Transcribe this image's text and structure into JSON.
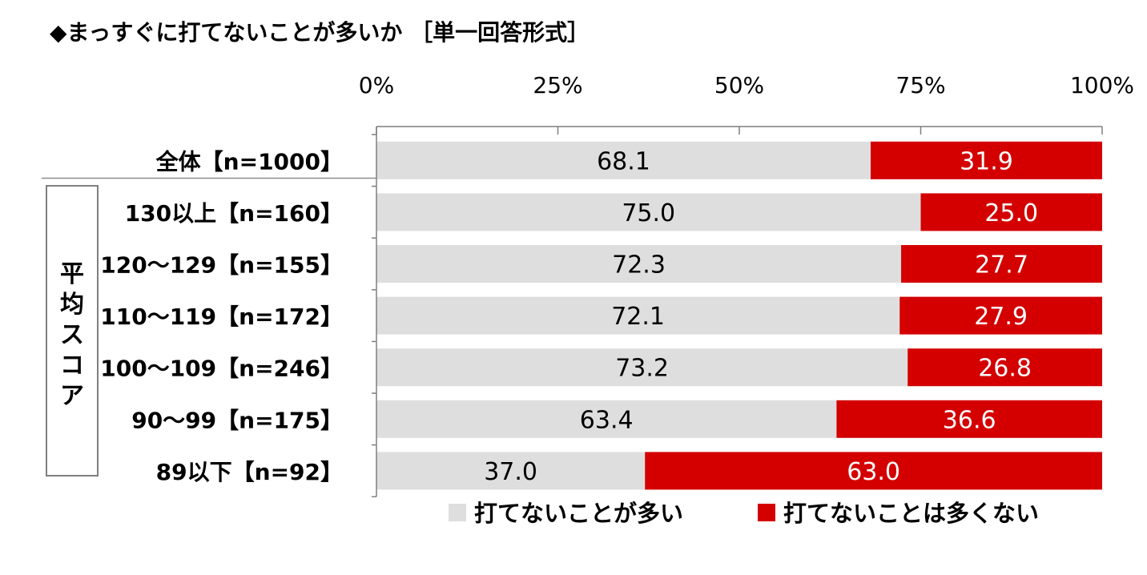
{
  "chart_data": {
    "type": "bar",
    "orientation": "horizontal",
    "stacked": true,
    "percent_stacked": true,
    "title": "◆まっすぐに打てないことが多いか ［単一回答形式］",
    "group_label": "平均スコア",
    "xlim": [
      0,
      100
    ],
    "x_ticks": [
      "0%",
      "25%",
      "50%",
      "75%",
      "100%"
    ],
    "grid": false,
    "legend_position": "bottom",
    "categories": [
      "全体【n=1000】",
      "130以上【n=160】",
      "120～129【n=155】",
      "110～119【n=172】",
      "100～109【n=246】",
      "90～99【n=175】",
      "89以下【n=92】"
    ],
    "series": [
      {
        "name": "打てないことが多い",
        "color": "#dedede",
        "label_color": "#000000",
        "values": [
          68.1,
          75.0,
          72.3,
          72.1,
          73.2,
          63.4,
          37.0
        ],
        "labels": [
          "68.1",
          "75.0",
          "72.3",
          "72.1",
          "73.2",
          "63.4",
          "37.0"
        ]
      },
      {
        "name": "打てないことは多くない",
        "color": "#d40000",
        "label_color": "#ffffff",
        "values": [
          31.9,
          25.0,
          27.7,
          27.9,
          26.8,
          36.6,
          63.0
        ],
        "labels": [
          "31.9",
          "25.0",
          "27.7",
          "27.9",
          "26.8",
          "36.6",
          "63.0"
        ]
      }
    ]
  }
}
